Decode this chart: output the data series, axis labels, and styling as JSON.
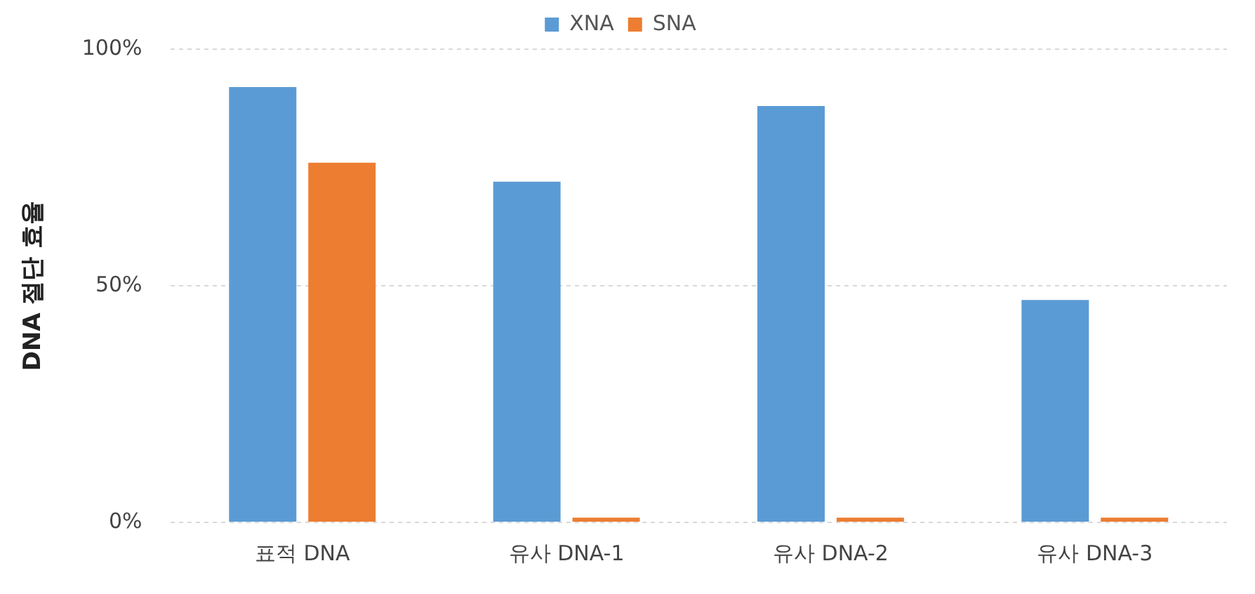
{
  "chart_data": {
    "type": "bar",
    "ylabel": "DNA 절단 효율",
    "categories": [
      "표적 DNA",
      "유사 DNA-1",
      "유사 DNA-2",
      "유사 DNA-3"
    ],
    "series": [
      {
        "name": "XNA",
        "color": "#5b9bd5",
        "values": [
          92,
          72,
          88,
          47
        ]
      },
      {
        "name": "SNA",
        "color": "#ed7d31",
        "values": [
          76,
          1,
          1,
          1
        ]
      }
    ],
    "ylim": [
      0,
      100
    ],
    "yticks": [
      {
        "value": 0,
        "label": "0%"
      },
      {
        "value": 50,
        "label": "50%"
      },
      {
        "value": 100,
        "label": "100%"
      }
    ],
    "grid": "y",
    "legend": "top"
  }
}
